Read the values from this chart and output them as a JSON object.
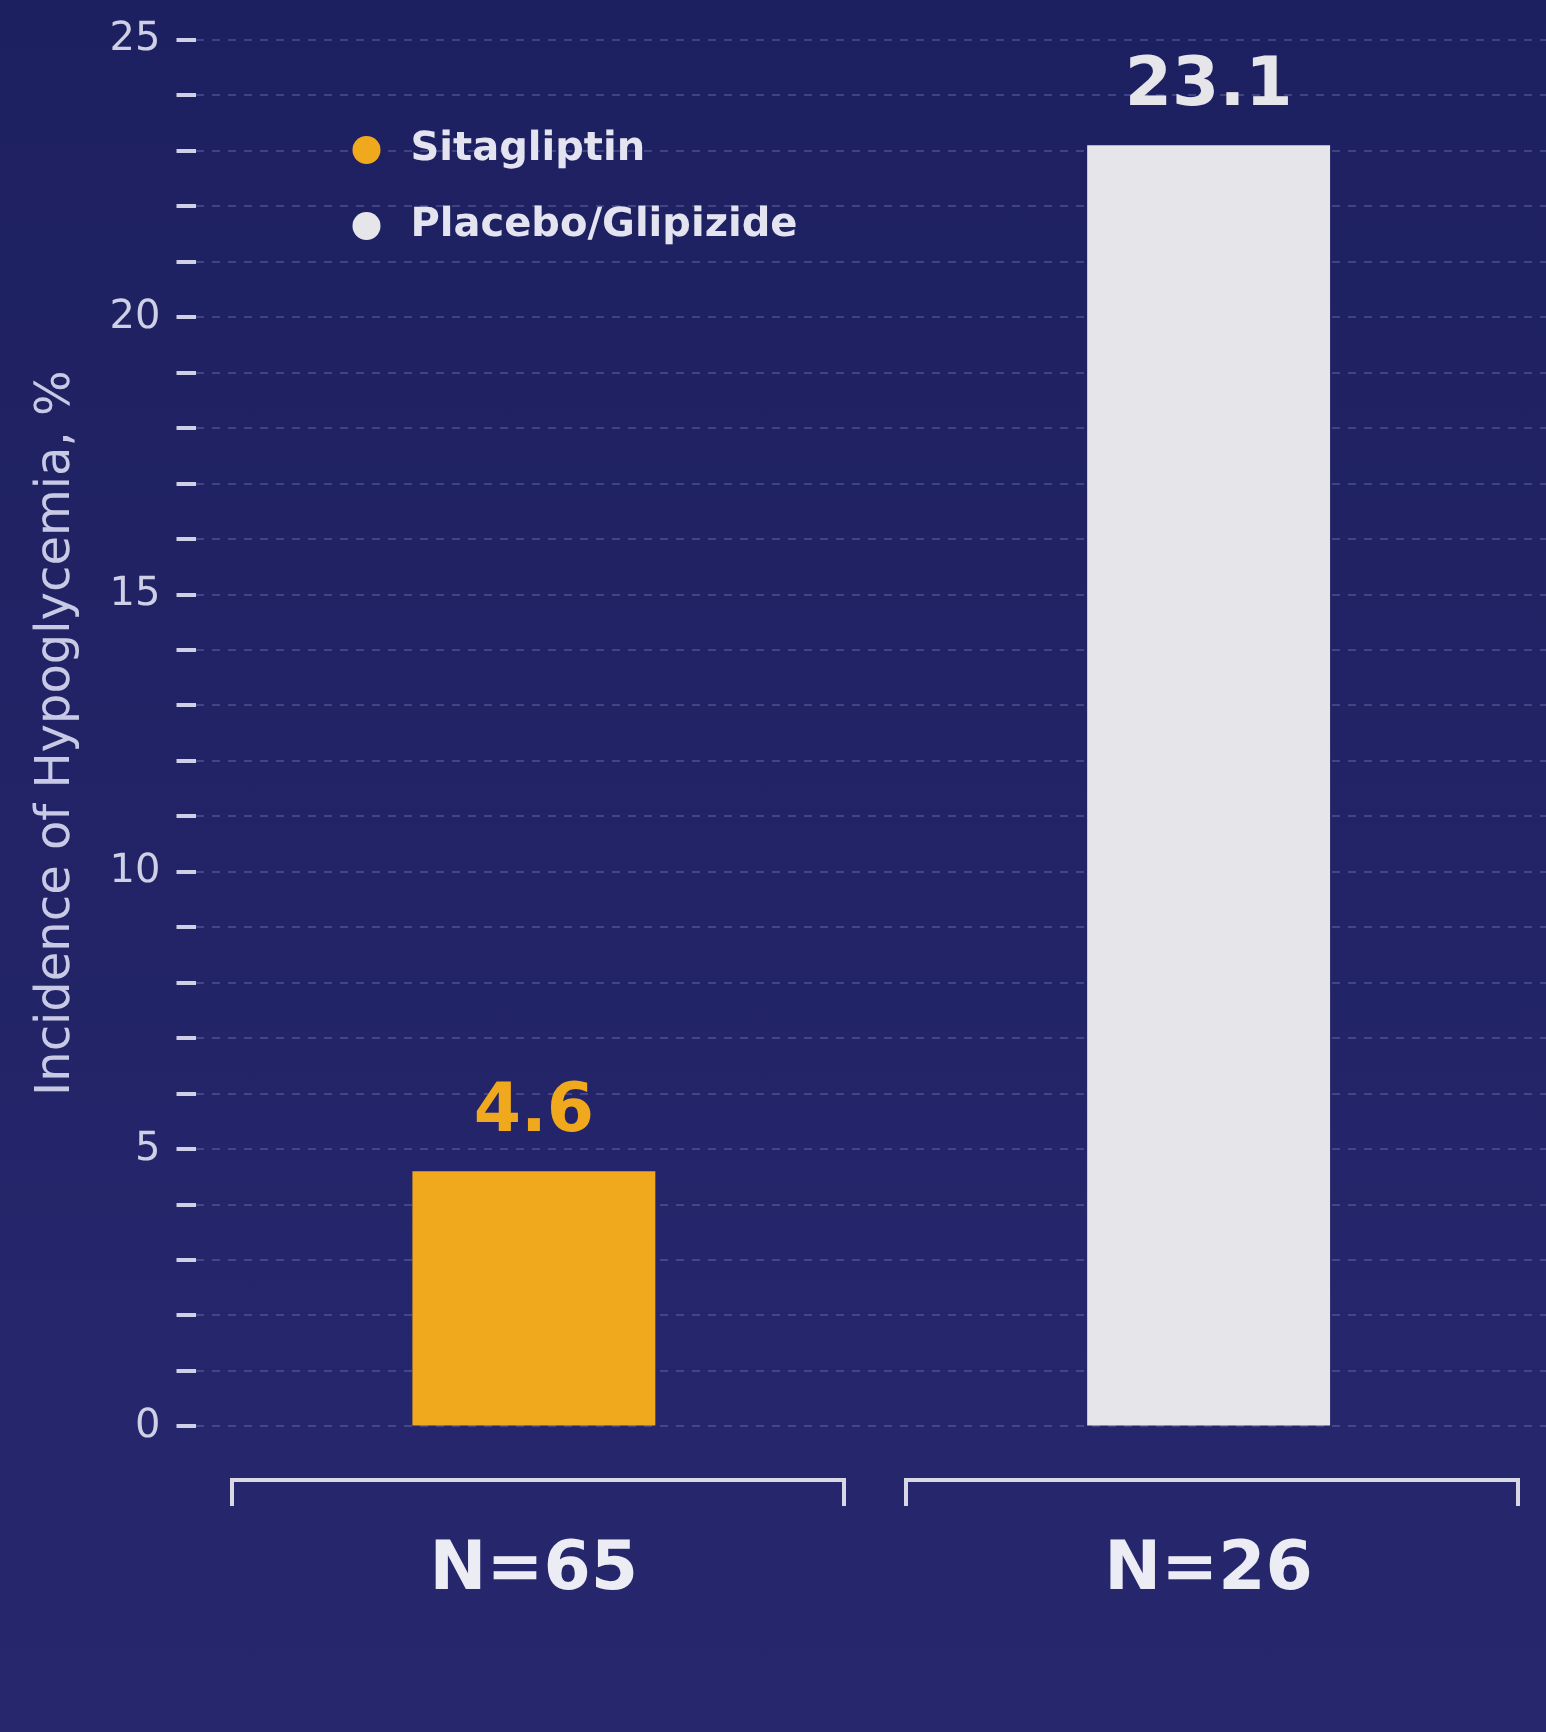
{
  "chart_data": {
    "type": "bar",
    "ylabel": "Incidence of Hypoglycemia, %",
    "categories": [
      "N=65",
      "N=26"
    ],
    "series": [
      {
        "name": "Sitagliptin",
        "color": "#f0a81c",
        "values": [
          4.6,
          null
        ]
      },
      {
        "name": "Placebo/Glipizide",
        "color": "#e6e6ea",
        "values": [
          null,
          23.1
        ]
      }
    ],
    "ylim": [
      0,
      25
    ],
    "yticks": [
      0,
      {
        "value": 1,
        "label": null
      },
      {
        "value": 2,
        "label": null
      },
      {
        "value": 3,
        "label": null
      },
      {
        "value": 4,
        "label": null
      },
      5,
      {
        "value": 6,
        "label": null
      },
      {
        "value": 7,
        "label": null
      },
      {
        "value": 8,
        "label": null
      },
      {
        "value": 9,
        "label": null
      },
      10,
      {
        "value": 11,
        "label": null
      },
      {
        "value": 12,
        "label": null
      },
      {
        "value": 13,
        "label": null
      },
      {
        "value": 14,
        "label": null
      },
      15,
      {
        "value": 16,
        "label": null
      },
      {
        "value": 17,
        "label": null
      },
      {
        "value": 18,
        "label": null
      },
      {
        "value": 19,
        "label": null
      },
      20,
      {
        "value": 21,
        "label": null
      },
      {
        "value": 22,
        "label": null
      },
      {
        "value": 23,
        "label": null
      },
      {
        "value": 24,
        "label": null
      },
      25
    ],
    "grid": true,
    "legend": "top left",
    "data_labels": true
  }
}
